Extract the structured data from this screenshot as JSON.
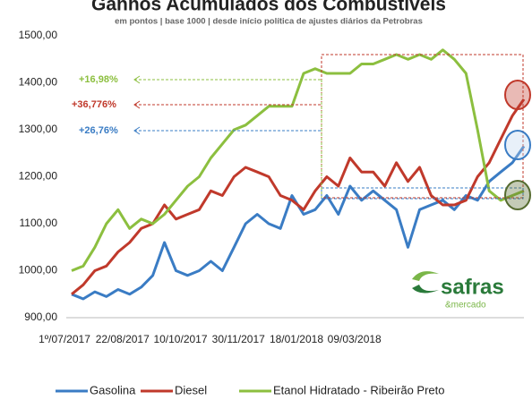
{
  "chart_data": {
    "type": "line",
    "title": "Ganhos Acumulados dos Combustíveis",
    "subtitle": "em pontos | base 1000 | desde início política de ajustes diários da Petrobras",
    "categories": [
      "1º/07/2017",
      null,
      null,
      null,
      null,
      "22/08/2017",
      null,
      null,
      null,
      null,
      "10/10/2017",
      null,
      null,
      null,
      null,
      "30/11/2017",
      null,
      null,
      null,
      null,
      "18/01/2018",
      null,
      null,
      null,
      null,
      "09/03/2018",
      null,
      null,
      null,
      null,
      null,
      null,
      null,
      null,
      null,
      null,
      null,
      null,
      null,
      null
    ],
    "series": [
      {
        "name": "Gasolina",
        "color": "#3a7cc4",
        "values": [
          950,
          940,
          955,
          945,
          960,
          950,
          965,
          990,
          1060,
          1000,
          990,
          1000,
          1020,
          1000,
          1050,
          1100,
          1120,
          1100,
          1090,
          1160,
          1120,
          1130,
          1160,
          1120,
          1180,
          1150,
          1170,
          1150,
          1130,
          1050,
          1130,
          1140,
          1150,
          1130,
          1160,
          1150,
          1190,
          1210,
          1230,
          1265
        ]
      },
      {
        "name": "Diesel",
        "color": "#c0392b",
        "values": [
          950,
          970,
          1000,
          1010,
          1040,
          1060,
          1090,
          1100,
          1140,
          1110,
          1120,
          1130,
          1170,
          1160,
          1200,
          1220,
          1210,
          1200,
          1160,
          1150,
          1130,
          1170,
          1200,
          1180,
          1240,
          1210,
          1210,
          1180,
          1230,
          1190,
          1220,
          1160,
          1140,
          1140,
          1150,
          1200,
          1230,
          1280,
          1330,
          1365
        ]
      },
      {
        "name": "Etanol Hidratado - Ribeirão Preto",
        "color": "#8cbf3f",
        "values": [
          1000,
          1010,
          1050,
          1100,
          1130,
          1090,
          1110,
          1100,
          1120,
          1150,
          1180,
          1200,
          1240,
          1270,
          1300,
          1310,
          1330,
          1350,
          1350,
          1350,
          1420,
          1430,
          1420,
          1420,
          1420,
          1440,
          1440,
          1450,
          1460,
          1450,
          1460,
          1450,
          1470,
          1450,
          1420,
          1300,
          1170,
          1150,
          1160,
          1170
        ]
      }
    ],
    "ylim": [
      900,
      1500
    ],
    "yticks": [
      {
        "value": 900,
        "label": "900,00"
      },
      {
        "value": 1000,
        "label": "1000,00"
      },
      {
        "value": 1100,
        "label": "1100,00"
      },
      {
        "value": 1200,
        "label": "1200,00"
      },
      {
        "value": 1300,
        "label": "1300,00"
      },
      {
        "value": 1400,
        "label": "1400,00"
      },
      {
        "value": 1500,
        "label": "1500,00"
      }
    ],
    "annotations": [
      "+16,98%",
      "+36,776%",
      "+26,76%"
    ],
    "logo": [
      "safras",
      "&mercado"
    ],
    "legend": "bottom"
  }
}
